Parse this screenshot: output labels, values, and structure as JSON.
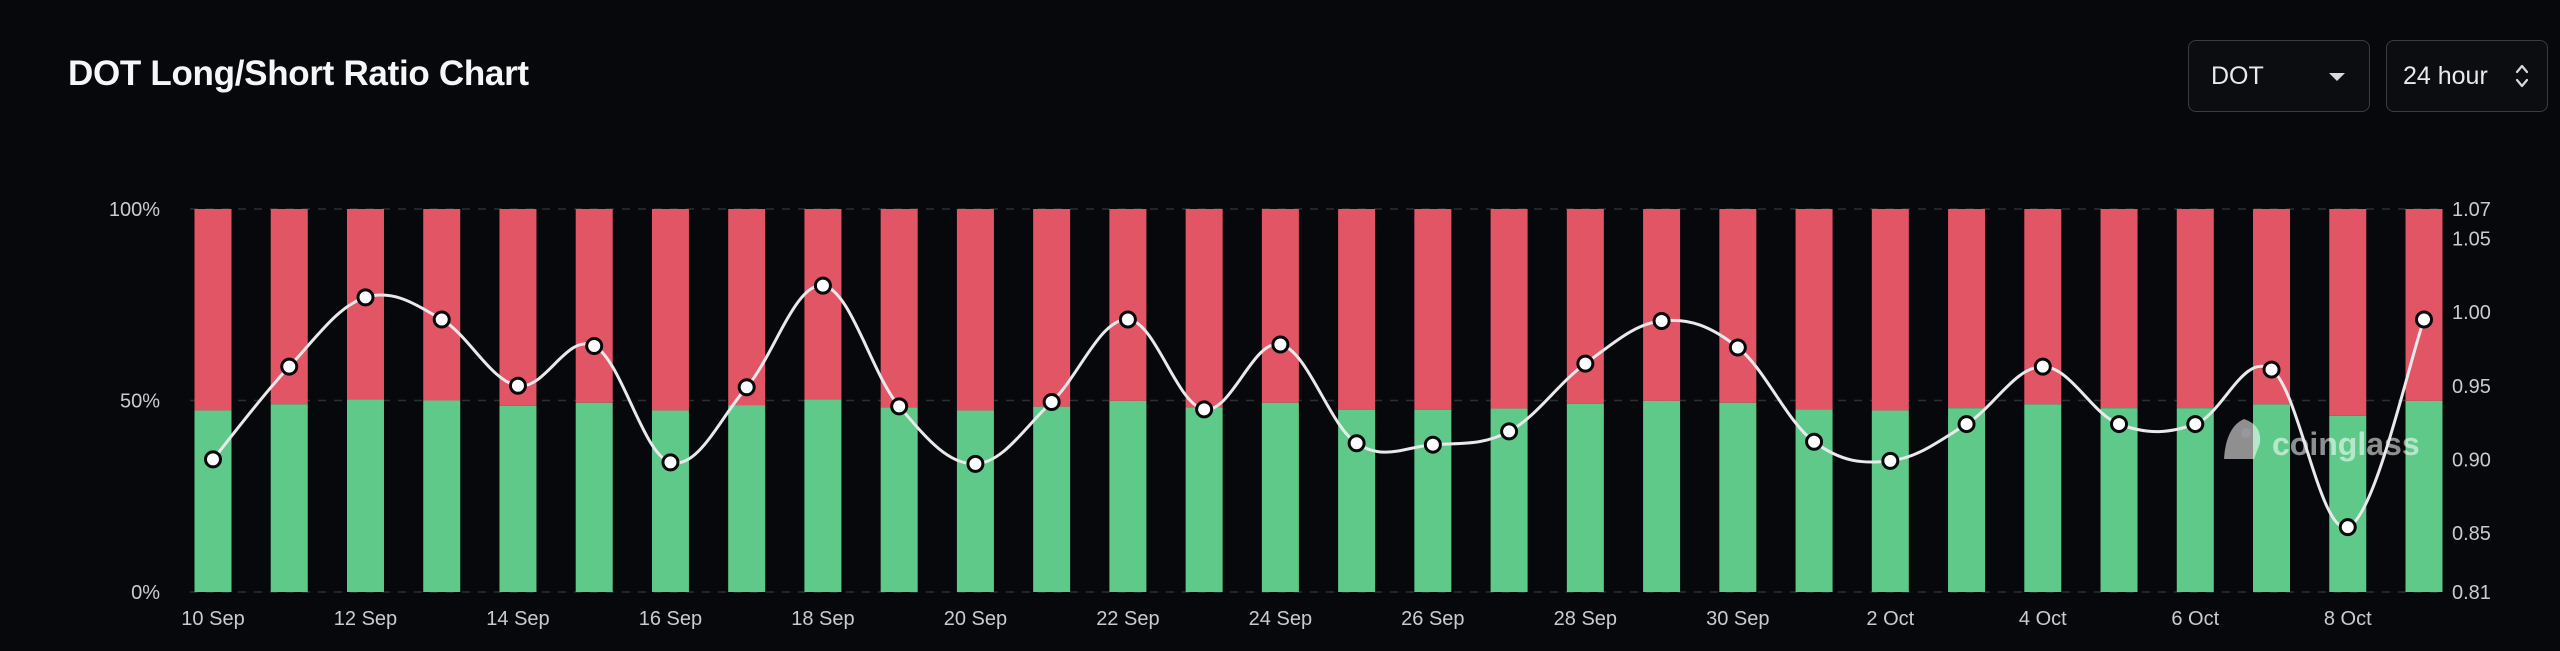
{
  "header": {
    "title": "DOT Long/Short Ratio Chart",
    "symbol_value": "DOT",
    "interval_value": "24 hour"
  },
  "watermark": "coinglass",
  "colors": {
    "long": "#5fc98a",
    "short": "#e25565",
    "ratio_line": "#e9e9ec",
    "background": "#07080b"
  },
  "icons": {
    "symbol_caret": "chevron-down-icon",
    "interval_caret": "up-down-arrows-icon",
    "watermark_logo": "coinglass-logo-icon"
  },
  "chart_data": {
    "type": "bar",
    "subtype": "stacked-100-with-ratio-line",
    "title": "DOT Long/Short Ratio Chart",
    "x": [
      "10 Sep",
      "11 Sep",
      "12 Sep",
      "13 Sep",
      "14 Sep",
      "15 Sep",
      "16 Sep",
      "17 Sep",
      "18 Sep",
      "19 Sep",
      "20 Sep",
      "21 Sep",
      "22 Sep",
      "23 Sep",
      "24 Sep",
      "25 Sep",
      "26 Sep",
      "27 Sep",
      "28 Sep",
      "29 Sep",
      "30 Sep",
      "1 Oct",
      "2 Oct",
      "3 Oct",
      "4 Oct",
      "5 Oct",
      "6 Oct",
      "7 Oct",
      "8 Oct",
      "9 Oct"
    ],
    "x_tick_labels": [
      "10 Sep",
      "12 Sep",
      "14 Sep",
      "16 Sep",
      "18 Sep",
      "20 Sep",
      "22 Sep",
      "24 Sep",
      "26 Sep",
      "28 Sep",
      "30 Sep",
      "2 Oct",
      "4 Oct",
      "6 Oct",
      "8 Oct"
    ],
    "series": [
      {
        "axis": "left",
        "values": [
          47.4,
          49.0,
          50.3,
          50.0,
          48.6,
          49.4,
          47.4,
          48.8,
          50.3,
          48.2,
          47.4,
          48.4,
          49.9,
          48.2,
          49.4,
          47.6,
          47.6,
          47.9,
          49.1,
          49.9,
          49.4,
          47.7,
          47.4,
          48.0,
          49.0,
          48.0,
          48.0,
          49.0,
          46.0,
          49.9
        ]
      },
      {
        "axis": "left",
        "values": [
          52.6,
          51.0,
          49.7,
          50.0,
          51.4,
          50.6,
          52.6,
          51.2,
          49.7,
          51.8,
          52.6,
          51.6,
          50.1,
          51.8,
          50.6,
          52.4,
          52.4,
          52.1,
          50.9,
          50.1,
          50.6,
          52.3,
          52.6,
          52.0,
          51.0,
          52.0,
          52.0,
          51.0,
          54.0,
          50.1
        ]
      },
      {
        "axis": "right",
        "type": "line",
        "values": [
          0.9,
          0.963,
          1.01,
          0.995,
          0.95,
          0.977,
          0.898,
          0.949,
          1.018,
          0.936,
          0.897,
          0.939,
          0.995,
          0.934,
          0.978,
          0.911,
          0.91,
          0.919,
          0.965,
          0.994,
          0.976,
          0.912,
          0.899,
          0.924,
          0.963,
          0.924,
          0.924,
          0.961,
          0.854,
          0.995
        ]
      }
    ],
    "y_left": {
      "min": 0,
      "max": 100,
      "ticks": [
        "0%",
        "50%",
        "100%"
      ],
      "tick_values": [
        0,
        50,
        100
      ]
    },
    "y_right": {
      "min": 0.81,
      "max": 1.07,
      "ticks": [
        "0.81",
        "0.85",
        "0.90",
        "0.95",
        "1.00",
        "1.05",
        "1.07"
      ],
      "tick_values": [
        0.81,
        0.85,
        0.9,
        0.95,
        1.0,
        1.05,
        1.07
      ]
    },
    "grid": "horizontal dashed",
    "legend": "none"
  }
}
